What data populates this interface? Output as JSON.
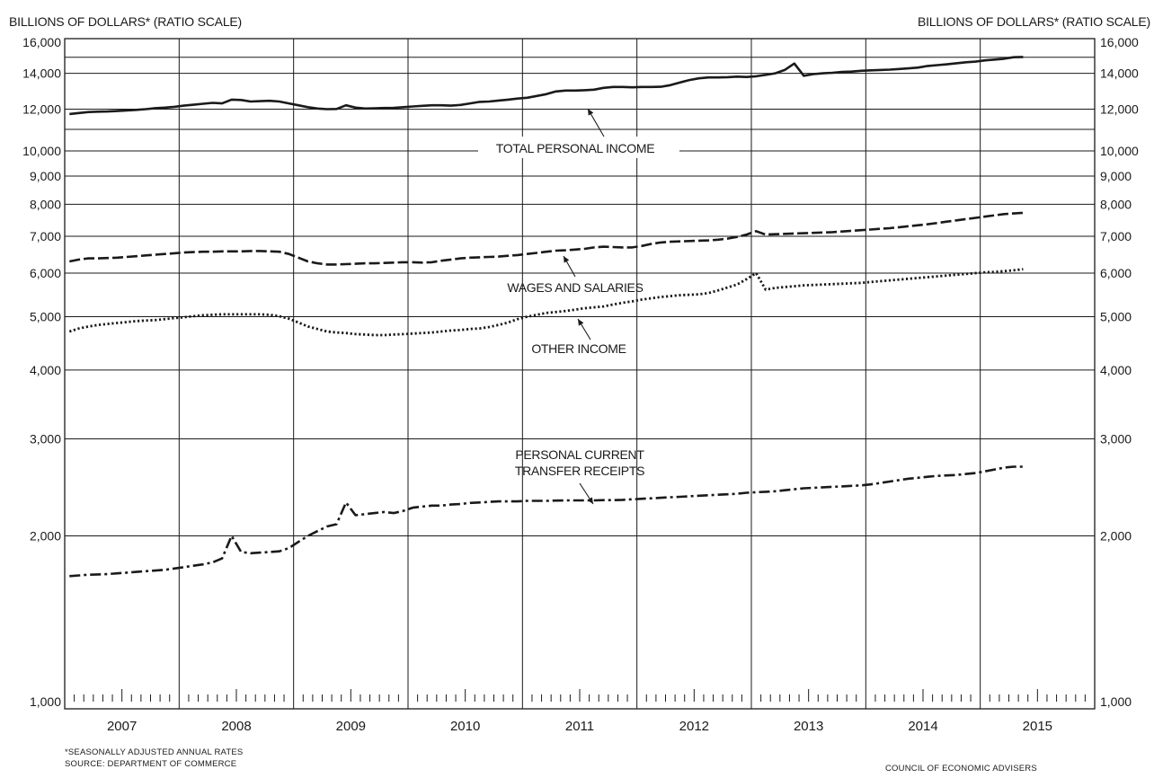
{
  "header": {
    "left_axis_title": "BILLIONS OF DOLLARS* (RATIO SCALE)",
    "right_axis_title": "BILLIONS OF DOLLARS* (RATIO SCALE)"
  },
  "footer": {
    "note": "*SEASONALLY ADJUSTED ANNUAL RATES",
    "source": "SOURCE: DEPARTMENT OF COMMERCE",
    "credit": "COUNCIL OF ECONOMIC ADVISERS"
  },
  "chart_data": {
    "type": "line",
    "yscale": "log",
    "ylim": [
      1000,
      16000
    ],
    "y_ticks": [
      1000,
      2000,
      3000,
      4000,
      5000,
      6000,
      7000,
      8000,
      9000,
      10000,
      12000,
      14000,
      16000
    ],
    "y_tick_labels": [
      "1,000",
      "2,000",
      "3,000",
      "4,000",
      "5,000",
      "6,000",
      "7,000",
      "8,000",
      "9,000",
      "10,000",
      "12,000",
      "14,000",
      "16,000"
    ],
    "x_tick_labels": [
      "2007",
      "2008",
      "2009",
      "2010",
      "2011",
      "2012",
      "2013",
      "2014",
      "2015"
    ],
    "grid": true,
    "axis_break": "between 10,000 and 12,000",
    "series": [
      {
        "name": "TOTAL PERSONAL INCOME",
        "style": "solid",
        "x": [
          "2007-01",
          "2007-02",
          "2007-03",
          "2007-04",
          "2007-05",
          "2007-06",
          "2007-07",
          "2007-08",
          "2007-09",
          "2007-10",
          "2007-11",
          "2007-12",
          "2008-01",
          "2008-02",
          "2008-03",
          "2008-04",
          "2008-05",
          "2008-06",
          "2008-07",
          "2008-08",
          "2008-09",
          "2008-10",
          "2008-11",
          "2008-12",
          "2009-01",
          "2009-02",
          "2009-03",
          "2009-04",
          "2009-05",
          "2009-06",
          "2009-07",
          "2009-08",
          "2009-09",
          "2009-10",
          "2009-11",
          "2009-12",
          "2010-01",
          "2010-02",
          "2010-03",
          "2010-04",
          "2010-05",
          "2010-06",
          "2010-07",
          "2010-08",
          "2010-09",
          "2010-10",
          "2010-11",
          "2010-12",
          "2011-01",
          "2011-02",
          "2011-03",
          "2011-04",
          "2011-05",
          "2011-06",
          "2011-07",
          "2011-08",
          "2011-09",
          "2011-10",
          "2011-11",
          "2011-12",
          "2012-01",
          "2012-02",
          "2012-03",
          "2012-04",
          "2012-05",
          "2012-06",
          "2012-07",
          "2012-08",
          "2012-09",
          "2012-10",
          "2012-11",
          "2012-12",
          "2013-01",
          "2013-02",
          "2013-03",
          "2013-04",
          "2013-05",
          "2013-06",
          "2013-07",
          "2013-08",
          "2013-09",
          "2013-10",
          "2013-11",
          "2013-12",
          "2014-01",
          "2014-02",
          "2014-03",
          "2014-04",
          "2014-05",
          "2014-06",
          "2014-07",
          "2014-08",
          "2014-09",
          "2014-10",
          "2014-11",
          "2014-12",
          "2015-01",
          "2015-02",
          "2015-03",
          "2015-04",
          "2015-05"
        ],
        "values": [
          11750,
          11800,
          11850,
          11870,
          11880,
          11900,
          11930,
          11960,
          12000,
          12050,
          12080,
          12120,
          12180,
          12230,
          12280,
          12330,
          12300,
          12500,
          12480,
          12400,
          12420,
          12440,
          12400,
          12300,
          12200,
          12100,
          12030,
          12000,
          12010,
          12200,
          12080,
          12030,
          12040,
          12060,
          12070,
          12100,
          12140,
          12170,
          12200,
          12200,
          12180,
          12220,
          12300,
          12380,
          12400,
          12450,
          12500,
          12560,
          12600,
          12700,
          12800,
          12950,
          13000,
          13000,
          13020,
          13050,
          13150,
          13200,
          13200,
          13180,
          13200,
          13200,
          13210,
          13300,
          13450,
          13600,
          13700,
          13750,
          13750,
          13770,
          13800,
          13780,
          13820,
          13900,
          14000,
          14200,
          14600,
          13850,
          13950,
          14000,
          14030,
          14080,
          14100,
          14150,
          14180,
          14200,
          14220,
          14260,
          14300,
          14350,
          14450,
          14500,
          14550,
          14620,
          14680,
          14720,
          14800,
          14850,
          14900,
          15000,
          15020
        ]
      },
      {
        "name": "WAGES AND SALARIES",
        "style": "dashed",
        "x": [
          "2007-01",
          "2007-02",
          "2007-03",
          "2007-04",
          "2007-05",
          "2007-06",
          "2007-07",
          "2007-08",
          "2007-09",
          "2007-10",
          "2007-11",
          "2007-12",
          "2008-01",
          "2008-02",
          "2008-03",
          "2008-04",
          "2008-05",
          "2008-06",
          "2008-07",
          "2008-08",
          "2008-09",
          "2008-10",
          "2008-11",
          "2008-12",
          "2009-01",
          "2009-02",
          "2009-03",
          "2009-04",
          "2009-05",
          "2009-06",
          "2009-07",
          "2009-08",
          "2009-09",
          "2009-10",
          "2009-11",
          "2009-12",
          "2010-01",
          "2010-02",
          "2010-03",
          "2010-04",
          "2010-05",
          "2010-06",
          "2010-07",
          "2010-08",
          "2010-09",
          "2010-10",
          "2010-11",
          "2010-12",
          "2011-01",
          "2011-02",
          "2011-03",
          "2011-04",
          "2011-05",
          "2011-06",
          "2011-07",
          "2011-08",
          "2011-09",
          "2011-10",
          "2011-11",
          "2011-12",
          "2012-01",
          "2012-02",
          "2012-03",
          "2012-04",
          "2012-05",
          "2012-06",
          "2012-07",
          "2012-08",
          "2012-09",
          "2012-10",
          "2012-11",
          "2012-12",
          "2013-01",
          "2013-02",
          "2013-03",
          "2013-04",
          "2013-05",
          "2013-06",
          "2013-07",
          "2013-08",
          "2013-09",
          "2013-10",
          "2013-11",
          "2013-12",
          "2014-01",
          "2014-02",
          "2014-03",
          "2014-04",
          "2014-05",
          "2014-06",
          "2014-07",
          "2014-08",
          "2014-09",
          "2014-10",
          "2014-11",
          "2014-12",
          "2015-01",
          "2015-02",
          "2015-03",
          "2015-04",
          "2015-05"
        ],
        "values": [
          6300,
          6350,
          6380,
          6380,
          6390,
          6400,
          6420,
          6440,
          6460,
          6480,
          6500,
          6520,
          6540,
          6550,
          6560,
          6560,
          6570,
          6570,
          6570,
          6580,
          6580,
          6570,
          6560,
          6500,
          6400,
          6300,
          6250,
          6220,
          6220,
          6230,
          6240,
          6250,
          6250,
          6260,
          6270,
          6280,
          6280,
          6270,
          6280,
          6320,
          6350,
          6380,
          6400,
          6410,
          6420,
          6430,
          6450,
          6470,
          6500,
          6530,
          6560,
          6590,
          6600,
          6620,
          6640,
          6680,
          6700,
          6690,
          6680,
          6680,
          6720,
          6780,
          6820,
          6840,
          6850,
          6860,
          6870,
          6880,
          6900,
          6930,
          6980,
          7050,
          7150,
          7050,
          7060,
          7070,
          7080,
          7090,
          7100,
          7110,
          7120,
          7140,
          7160,
          7180,
          7200,
          7220,
          7240,
          7270,
          7300,
          7330,
          7360,
          7400,
          7440,
          7480,
          7520,
          7560,
          7600,
          7640,
          7680,
          7700,
          7720
        ]
      },
      {
        "name": "OTHER INCOME",
        "style": "dotted",
        "x": [
          "2007-01",
          "2007-02",
          "2007-03",
          "2007-04",
          "2007-05",
          "2007-06",
          "2007-07",
          "2007-08",
          "2007-09",
          "2007-10",
          "2007-11",
          "2007-12",
          "2008-01",
          "2008-02",
          "2008-03",
          "2008-04",
          "2008-05",
          "2008-06",
          "2008-07",
          "2008-08",
          "2008-09",
          "2008-10",
          "2008-11",
          "2008-12",
          "2009-01",
          "2009-02",
          "2009-03",
          "2009-04",
          "2009-05",
          "2009-06",
          "2009-07",
          "2009-08",
          "2009-09",
          "2009-10",
          "2009-11",
          "2009-12",
          "2010-01",
          "2010-02",
          "2010-03",
          "2010-04",
          "2010-05",
          "2010-06",
          "2010-07",
          "2010-08",
          "2010-09",
          "2010-10",
          "2010-11",
          "2010-12",
          "2011-01",
          "2011-02",
          "2011-03",
          "2011-04",
          "2011-05",
          "2011-06",
          "2011-07",
          "2011-08",
          "2011-09",
          "2011-10",
          "2011-11",
          "2011-12",
          "2012-01",
          "2012-02",
          "2012-03",
          "2012-04",
          "2012-05",
          "2012-06",
          "2012-07",
          "2012-08",
          "2012-09",
          "2012-10",
          "2012-11",
          "2012-12",
          "2013-01",
          "2013-02",
          "2013-03",
          "2013-04",
          "2013-05",
          "2013-06",
          "2013-07",
          "2013-08",
          "2013-09",
          "2013-10",
          "2013-11",
          "2013-12",
          "2014-01",
          "2014-02",
          "2014-03",
          "2014-04",
          "2014-05",
          "2014-06",
          "2014-07",
          "2014-08",
          "2014-09",
          "2014-10",
          "2014-11",
          "2014-12",
          "2015-01",
          "2015-02",
          "2015-03",
          "2015-04",
          "2015-05"
        ],
        "values": [
          4700,
          4760,
          4800,
          4830,
          4850,
          4870,
          4890,
          4910,
          4920,
          4930,
          4950,
          4970,
          4990,
          5010,
          5030,
          5040,
          5050,
          5050,
          5050,
          5050,
          5050,
          5040,
          5010,
          4960,
          4880,
          4800,
          4750,
          4700,
          4680,
          4670,
          4650,
          4640,
          4630,
          4630,
          4640,
          4650,
          4660,
          4670,
          4680,
          4700,
          4720,
          4730,
          4750,
          4760,
          4790,
          4830,
          4880,
          4950,
          5000,
          5040,
          5080,
          5100,
          5120,
          5150,
          5180,
          5200,
          5220,
          5260,
          5300,
          5330,
          5370,
          5400,
          5430,
          5450,
          5470,
          5480,
          5490,
          5520,
          5580,
          5650,
          5720,
          5850,
          6000,
          5600,
          5640,
          5660,
          5680,
          5700,
          5710,
          5720,
          5730,
          5740,
          5750,
          5760,
          5780,
          5800,
          5820,
          5840,
          5860,
          5880,
          5900,
          5920,
          5940,
          5960,
          5980,
          6000,
          6020,
          6030,
          6050,
          6070,
          6100
        ]
      },
      {
        "name": "PERSONAL CURRENT TRANSFER RECEIPTS",
        "style": "dash-dot",
        "x": [
          "2007-01",
          "2007-02",
          "2007-03",
          "2007-04",
          "2007-05",
          "2007-06",
          "2007-07",
          "2007-08",
          "2007-09",
          "2007-10",
          "2007-11",
          "2007-12",
          "2008-01",
          "2008-02",
          "2008-03",
          "2008-04",
          "2008-05",
          "2008-06",
          "2008-07",
          "2008-08",
          "2008-09",
          "2008-10",
          "2008-11",
          "2008-12",
          "2009-01",
          "2009-02",
          "2009-03",
          "2009-04",
          "2009-05",
          "2009-06",
          "2009-07",
          "2009-08",
          "2009-09",
          "2009-10",
          "2009-11",
          "2009-12",
          "2010-01",
          "2010-02",
          "2010-03",
          "2010-04",
          "2010-05",
          "2010-06",
          "2010-07",
          "2010-08",
          "2010-09",
          "2010-10",
          "2010-11",
          "2010-12",
          "2011-01",
          "2011-02",
          "2011-03",
          "2011-04",
          "2011-05",
          "2011-06",
          "2011-07",
          "2011-08",
          "2011-09",
          "2011-10",
          "2011-11",
          "2011-12",
          "2012-01",
          "2012-02",
          "2012-03",
          "2012-04",
          "2012-05",
          "2012-06",
          "2012-07",
          "2012-08",
          "2012-09",
          "2012-10",
          "2012-11",
          "2012-12",
          "2013-01",
          "2013-02",
          "2013-03",
          "2013-04",
          "2013-05",
          "2013-06",
          "2013-07",
          "2013-08",
          "2013-09",
          "2013-10",
          "2013-11",
          "2013-12",
          "2014-01",
          "2014-02",
          "2014-03",
          "2014-04",
          "2014-05",
          "2014-06",
          "2014-07",
          "2014-08",
          "2014-09",
          "2014-10",
          "2014-11",
          "2014-12",
          "2015-01",
          "2015-02",
          "2015-03",
          "2015-04",
          "2015-05"
        ],
        "values": [
          1690,
          1695,
          1700,
          1702,
          1705,
          1710,
          1715,
          1720,
          1725,
          1730,
          1735,
          1745,
          1755,
          1765,
          1775,
          1790,
          1820,
          2000,
          1870,
          1860,
          1865,
          1870,
          1875,
          1900,
          1950,
          2000,
          2040,
          2080,
          2100,
          2300,
          2180,
          2190,
          2200,
          2210,
          2200,
          2220,
          2250,
          2260,
          2270,
          2270,
          2280,
          2285,
          2295,
          2300,
          2305,
          2310,
          2310,
          2310,
          2315,
          2315,
          2315,
          2318,
          2320,
          2320,
          2320,
          2320,
          2322,
          2322,
          2325,
          2330,
          2335,
          2340,
          2345,
          2350,
          2355,
          2360,
          2365,
          2370,
          2375,
          2380,
          2385,
          2395,
          2400,
          2405,
          2410,
          2420,
          2430,
          2440,
          2445,
          2450,
          2455,
          2460,
          2465,
          2470,
          2480,
          2495,
          2510,
          2525,
          2540,
          2550,
          2560,
          2570,
          2575,
          2580,
          2590,
          2600,
          2620,
          2640,
          2660,
          2670,
          2670
        ]
      }
    ]
  },
  "annotations": {
    "total_personal_income": "TOTAL PERSONAL INCOME",
    "wages_and_salaries": "WAGES AND SALARIES",
    "other_income": "OTHER INCOME",
    "transfer_line1": "PERSONAL CURRENT",
    "transfer_line2": "TRANSFER RECEIPTS"
  }
}
